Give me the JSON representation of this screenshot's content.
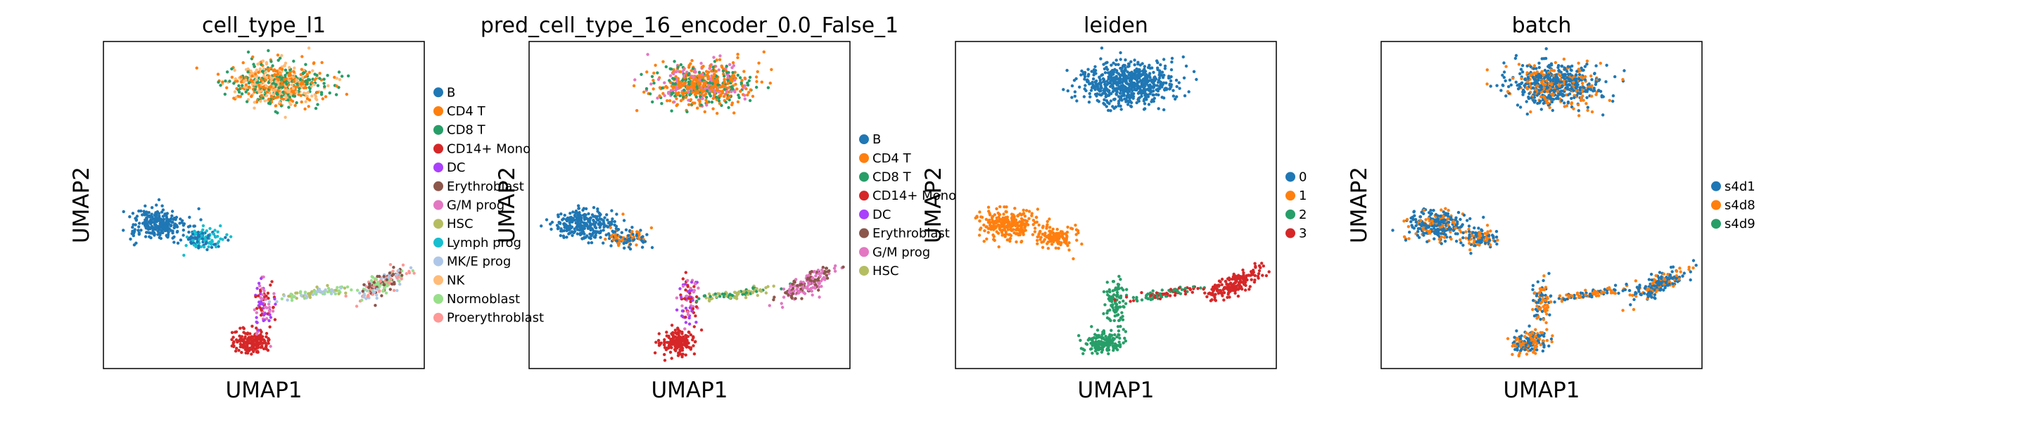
{
  "chart_data": [
    {
      "type": "scatter",
      "title": "cell_type_l1",
      "xlabel": "UMAP1",
      "ylabel": "UMAP2",
      "grid": false,
      "legend_position": "right",
      "legend": [
        {
          "label": "B",
          "color": "#1f77b4"
        },
        {
          "label": "CD4 T",
          "color": "#ff7f0e"
        },
        {
          "label": "CD8 T",
          "color": "#279e68"
        },
        {
          "label": "CD14+ Mono",
          "color": "#d62728"
        },
        {
          "label": "DC",
          "color": "#aa40fc"
        },
        {
          "label": "Erythroblast",
          "color": "#8c564b"
        },
        {
          "label": "G/M prog",
          "color": "#e377c2"
        },
        {
          "label": "HSC",
          "color": "#b5bd61"
        },
        {
          "label": "Lymph prog",
          "color": "#17becf"
        },
        {
          "label": "MK/E prog",
          "color": "#aec7e8"
        },
        {
          "label": "NK",
          "color": "#ffbb78"
        },
        {
          "label": "Normoblast",
          "color": "#98df8a"
        },
        {
          "label": "Proerythroblast",
          "color": "#ff9896"
        }
      ]
    },
    {
      "type": "scatter",
      "title": "pred_cell_type_16_encoder_0.0_False_1",
      "xlabel": "UMAP1",
      "ylabel": "UMAP2",
      "grid": false,
      "legend_position": "right",
      "legend": [
        {
          "label": "B",
          "color": "#1f77b4"
        },
        {
          "label": "CD4 T",
          "color": "#ff7f0e"
        },
        {
          "label": "CD8 T",
          "color": "#279e68"
        },
        {
          "label": "CD14+ Mono",
          "color": "#d62728"
        },
        {
          "label": "DC",
          "color": "#aa40fc"
        },
        {
          "label": "Erythroblast",
          "color": "#8c564b"
        },
        {
          "label": "G/M prog",
          "color": "#e377c2"
        },
        {
          "label": "HSC",
          "color": "#b5bd61"
        }
      ]
    },
    {
      "type": "scatter",
      "title": "leiden",
      "xlabel": "UMAP1",
      "ylabel": "UMAP2",
      "grid": false,
      "legend_position": "right",
      "legend": [
        {
          "label": "0",
          "color": "#1f77b4"
        },
        {
          "label": "1",
          "color": "#ff7f0e"
        },
        {
          "label": "2",
          "color": "#279e68"
        },
        {
          "label": "3",
          "color": "#d62728"
        }
      ]
    },
    {
      "type": "scatter",
      "title": "batch",
      "xlabel": "UMAP1",
      "ylabel": "UMAP2",
      "grid": false,
      "legend_position": "right",
      "legend": [
        {
          "label": "s4d1",
          "color": "#1f77b4"
        },
        {
          "label": "s4d8",
          "color": "#ff7f0e"
        },
        {
          "label": "s4d9",
          "color": "#279e68"
        }
      ]
    }
  ]
}
